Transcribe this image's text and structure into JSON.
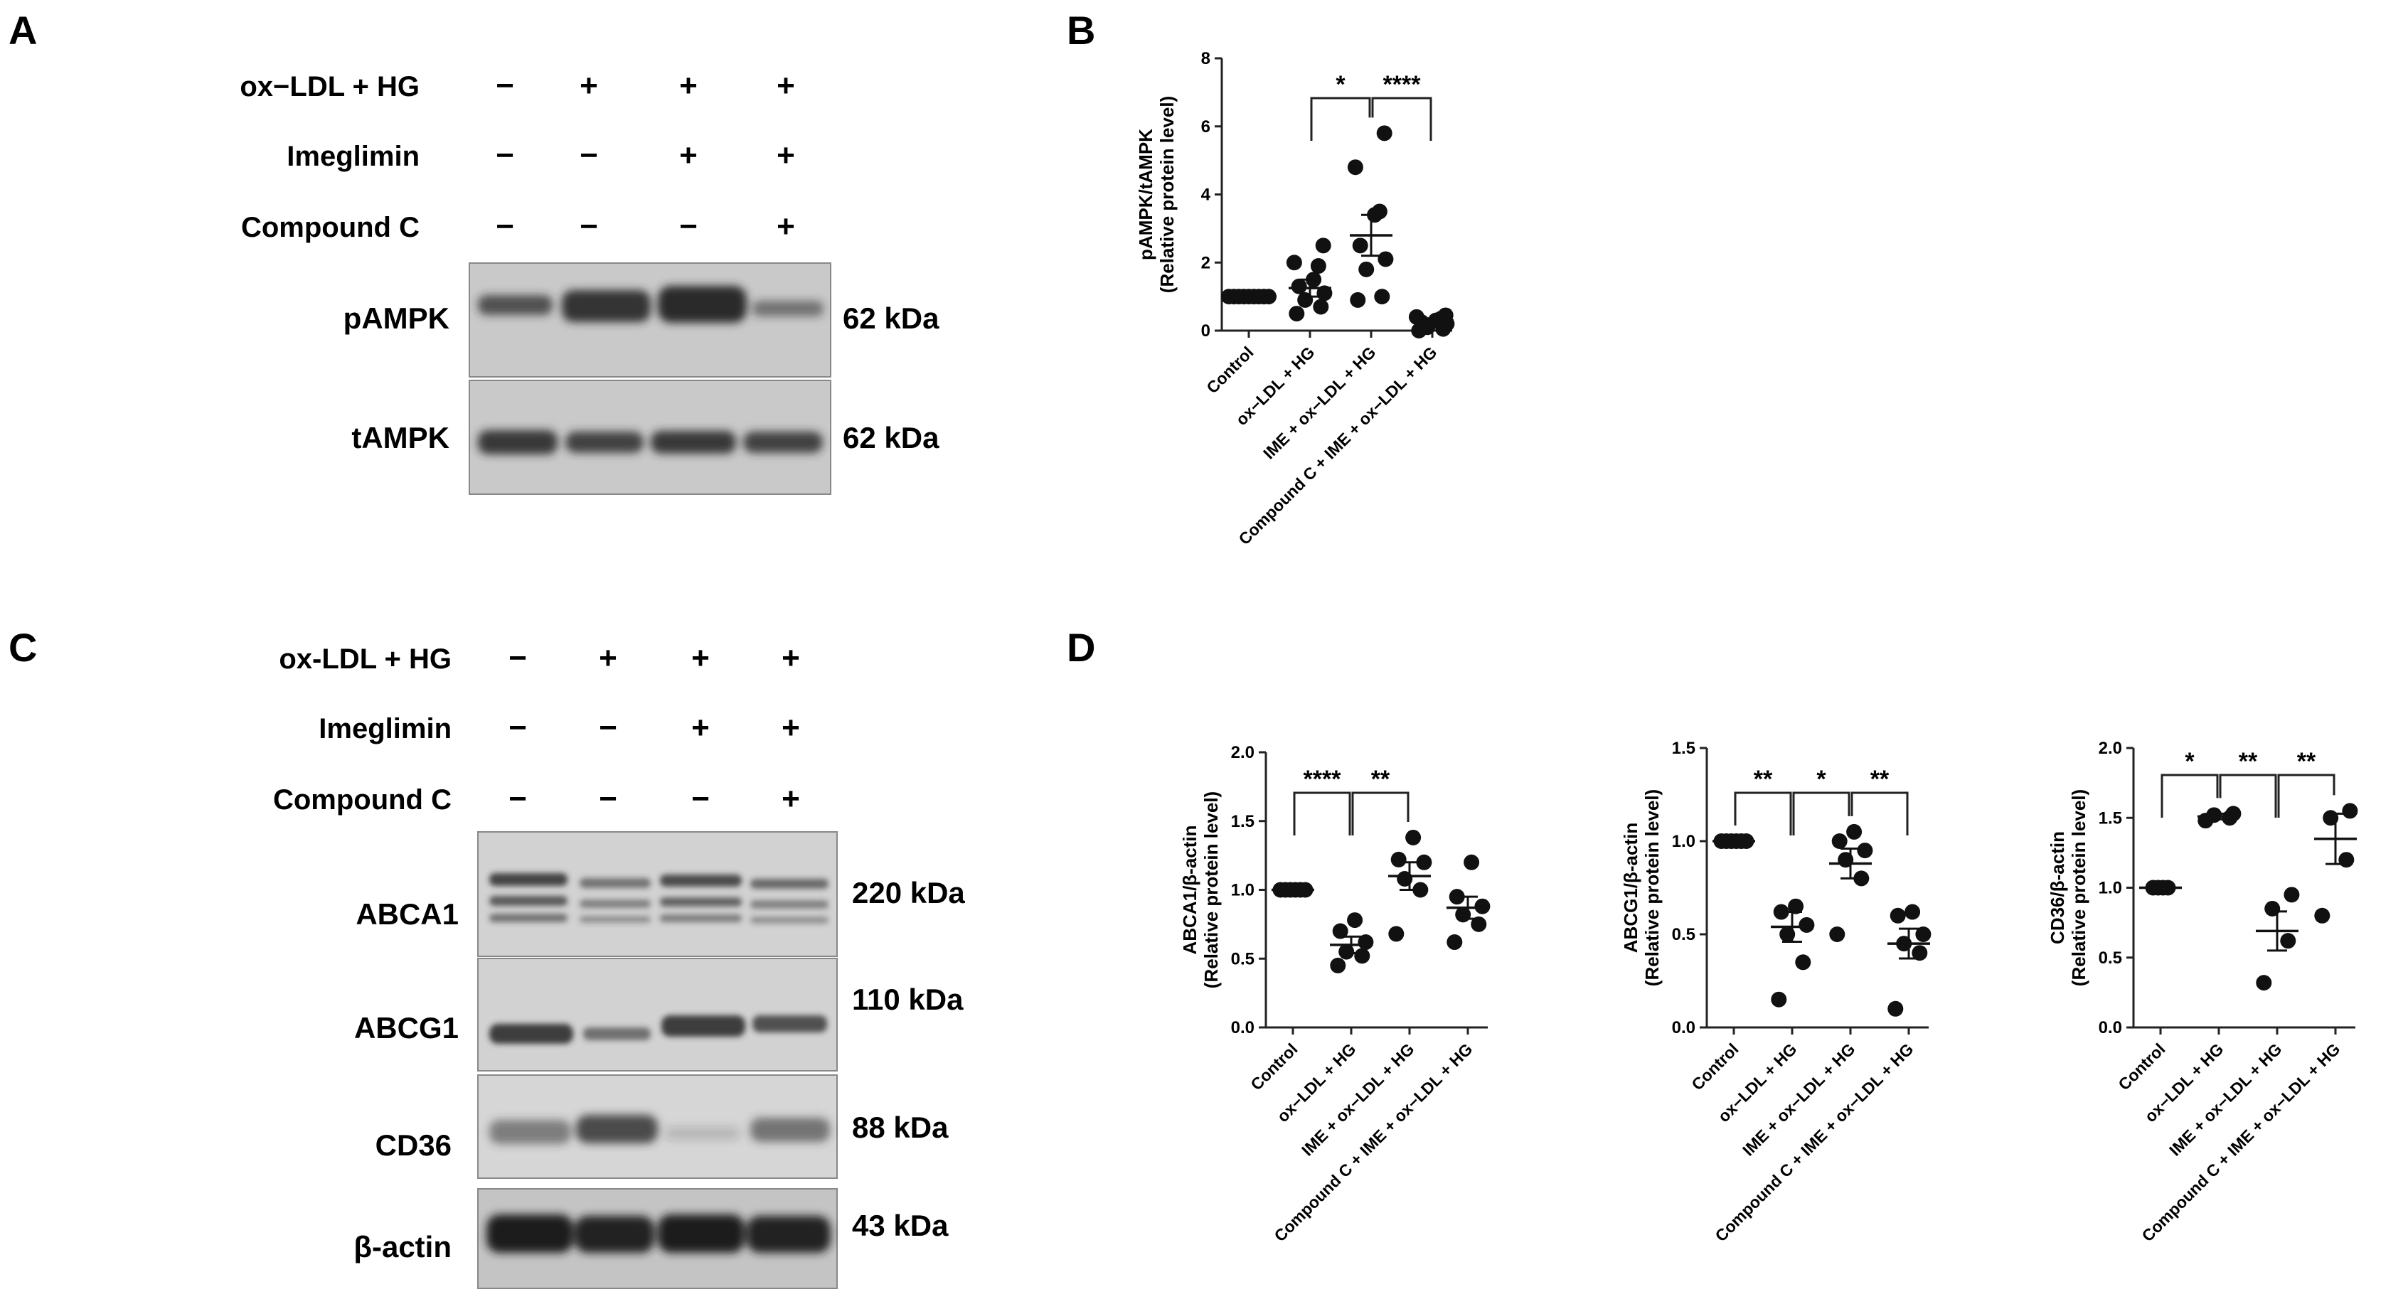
{
  "panel_letters": {
    "a": "A",
    "b": "B",
    "c": "C",
    "d": "D"
  },
  "blot_a": {
    "conditions": [
      {
        "label": "ox−LDL + HG",
        "signs": [
          "−",
          "+",
          "+",
          "+"
        ]
      },
      {
        "label": "Imeglimin",
        "signs": [
          "−",
          "−",
          "+",
          "+"
        ]
      },
      {
        "label": "Compound C",
        "signs": [
          "−",
          "−",
          "−",
          "+"
        ]
      }
    ],
    "bands": [
      {
        "label": "pAMPK",
        "kda": "62 kDa"
      },
      {
        "label": "tAMPK",
        "kda": "62 kDa"
      }
    ]
  },
  "blot_c": {
    "conditions": [
      {
        "label": "ox-LDL + HG",
        "signs": [
          "−",
          "+",
          "+",
          "+"
        ]
      },
      {
        "label": "Imeglimin",
        "signs": [
          "−",
          "−",
          "+",
          "+"
        ]
      },
      {
        "label": "Compound C",
        "signs": [
          "−",
          "−",
          "−",
          "+"
        ]
      }
    ],
    "bands": [
      {
        "label": "ABCA1",
        "kda": "220 kDa"
      },
      {
        "label": "ABCG1",
        "kda": "110 kDa"
      },
      {
        "label": "CD36",
        "kda": "88 kDa"
      },
      {
        "label": "β-actin",
        "kda": "43 kDa"
      }
    ]
  },
  "chart_data": [
    {
      "type": "scatter",
      "panel": "B",
      "ylabel_line1": "pAMPK/tAMPK",
      "ylabel_line2": "(Relative protein level)",
      "ylim": [
        0,
        8
      ],
      "yticks": [
        "0",
        "2",
        "4",
        "6",
        "8"
      ],
      "categories": [
        "Control",
        "ox−LDL + HG",
        "IME + ox−LDL + HG",
        "Compound C + IME + ox−LDL + HG"
      ],
      "points": [
        [
          1,
          1,
          1,
          1,
          1,
          1,
          1,
          1,
          1
        ],
        [
          0.5,
          0.7,
          0.9,
          1.1,
          1.3,
          1.5,
          1.9,
          2.0,
          2.5
        ],
        [
          0.9,
          1.0,
          1.8,
          2.1,
          2.5,
          3.4,
          3.5,
          4.8,
          5.8
        ],
        [
          0.0,
          0.05,
          0.1,
          0.2,
          0.25,
          0.3,
          0.35,
          0.4,
          0.45
        ]
      ],
      "mean": [
        1.0,
        1.25,
        2.8,
        0.3
      ],
      "sem": [
        0.0,
        0.25,
        0.6,
        0.06
      ],
      "significance": [
        {
          "from": 1,
          "to": 2,
          "label": "*"
        },
        {
          "from": 2,
          "to": 3,
          "label": "****"
        }
      ]
    },
    {
      "type": "scatter",
      "panel": "D-1",
      "ylabel_line1": "ABCA1/β-actin",
      "ylabel_line2": "(Relative protein level)",
      "ylim": [
        0,
        2.0
      ],
      "yticks": [
        "0.0",
        "0.5",
        "1.0",
        "1.5",
        "2.0"
      ],
      "categories": [
        "Control",
        "ox−LDL + HG",
        "IME + ox−LDL + HG",
        "Compound C + IME + ox−LDL + HG"
      ],
      "points": [
        [
          1,
          1,
          1,
          1,
          1,
          1
        ],
        [
          0.45,
          0.52,
          0.55,
          0.62,
          0.7,
          0.78
        ],
        [
          0.68,
          1.0,
          1.08,
          1.2,
          1.22,
          1.38
        ],
        [
          0.62,
          0.75,
          0.82,
          0.88,
          0.95,
          1.2
        ]
      ],
      "mean": [
        1.0,
        0.6,
        1.1,
        0.87
      ],
      "sem": [
        0.0,
        0.06,
        0.1,
        0.08
      ],
      "significance": [
        {
          "from": 0,
          "to": 1,
          "label": "****"
        },
        {
          "from": 1,
          "to": 2,
          "label": "**"
        }
      ]
    },
    {
      "type": "scatter",
      "panel": "D-2",
      "ylabel_line1": "ABCG1/β-actin",
      "ylabel_line2": "(Relative protein level)",
      "ylim": [
        0,
        1.5
      ],
      "yticks": [
        "0.0",
        "0.5",
        "1.0",
        "1.5"
      ],
      "categories": [
        "Control",
        "ox−LDL + HG",
        "IME + ox−LDL + HG",
        "Compound C + IME + ox−LDL + HG"
      ],
      "points": [
        [
          1,
          1,
          1,
          1,
          1,
          1
        ],
        [
          0.15,
          0.35,
          0.5,
          0.55,
          0.62,
          0.65
        ],
        [
          0.5,
          0.8,
          0.9,
          0.95,
          1.0,
          1.05
        ],
        [
          0.1,
          0.4,
          0.45,
          0.5,
          0.6,
          0.62
        ]
      ],
      "mean": [
        1.0,
        0.54,
        0.88,
        0.45
      ],
      "sem": [
        0.0,
        0.08,
        0.08,
        0.08
      ],
      "significance": [
        {
          "from": 0,
          "to": 1,
          "label": "**"
        },
        {
          "from": 1,
          "to": 2,
          "label": "*"
        },
        {
          "from": 2,
          "to": 3,
          "label": "**"
        }
      ]
    },
    {
      "type": "scatter",
      "panel": "D-3",
      "ylabel_line1": "CD36/β-actin",
      "ylabel_line2": "(Relative protein level)",
      "ylim": [
        0,
        2.0
      ],
      "yticks": [
        "0.0",
        "0.5",
        "1.0",
        "1.5",
        "2.0"
      ],
      "categories": [
        "Control",
        "ox−LDL + HG",
        "IME + ox−LDL + HG",
        "Compound C + IME + ox−LDL + HG"
      ],
      "points": [
        [
          1,
          1,
          1,
          1
        ],
        [
          1.48,
          1.5,
          1.52,
          1.53
        ],
        [
          0.32,
          0.62,
          0.85,
          0.95
        ],
        [
          0.8,
          1.2,
          1.5,
          1.55
        ]
      ],
      "mean": [
        1.0,
        1.51,
        0.69,
        1.35
      ],
      "sem": [
        0.0,
        0.02,
        0.14,
        0.18
      ],
      "significance": [
        {
          "from": 0,
          "to": 1,
          "label": "*"
        },
        {
          "from": 1,
          "to": 2,
          "label": "**"
        },
        {
          "from": 2,
          "to": 3,
          "label": "**"
        }
      ]
    }
  ]
}
